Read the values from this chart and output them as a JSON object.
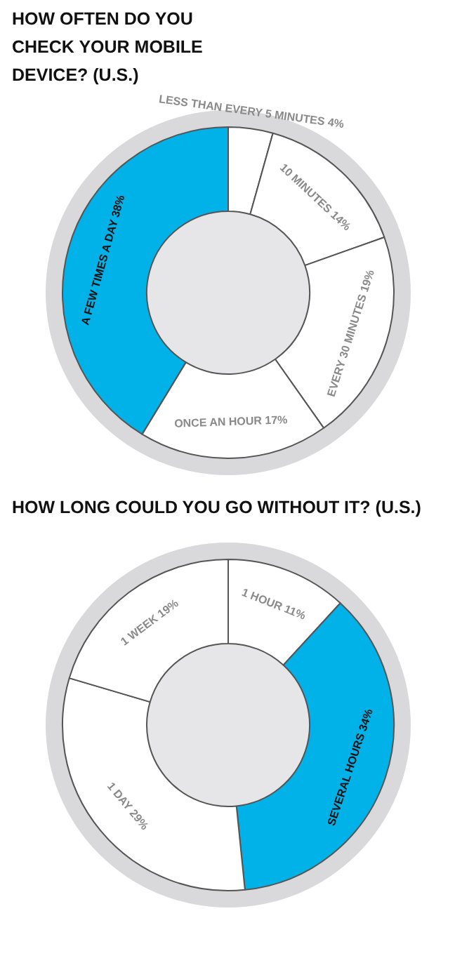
{
  "chart_data": [
    {
      "type": "donut",
      "title": "HOW OFTEN DO YOU CHECK YOUR MOBILE DEVICE? (U.S.)",
      "categories": [
        "LESS THAN EVERY 5 MINUTES",
        "10 MINUTES",
        "EVERY 30 MINUTES",
        "ONCE AN HOUR",
        "A FEW TIMES A DAY"
      ],
      "values": [
        4,
        14,
        19,
        17,
        38
      ],
      "value_labels": [
        "4%",
        "14%",
        "19%",
        "17%",
        "38%"
      ],
      "colors": [
        "#ffffff",
        "#ffffff",
        "#ffffff",
        "#ffffff",
        "#00b2e8"
      ],
      "legend": false
    },
    {
      "type": "donut",
      "title": "HOW LONG COULD YOU GO WITHOUT IT? (U.S.)",
      "categories": [
        "1 HOUR",
        "SEVERAL HOURS",
        "1 DAY",
        "1 WEEK"
      ],
      "values": [
        11,
        34,
        29,
        19
      ],
      "value_labels": [
        "11%",
        "34%",
        "29%",
        "19%"
      ],
      "colors": [
        "#ffffff",
        "#00b2e8",
        "#ffffff",
        "#ffffff"
      ],
      "legend": false
    }
  ]
}
